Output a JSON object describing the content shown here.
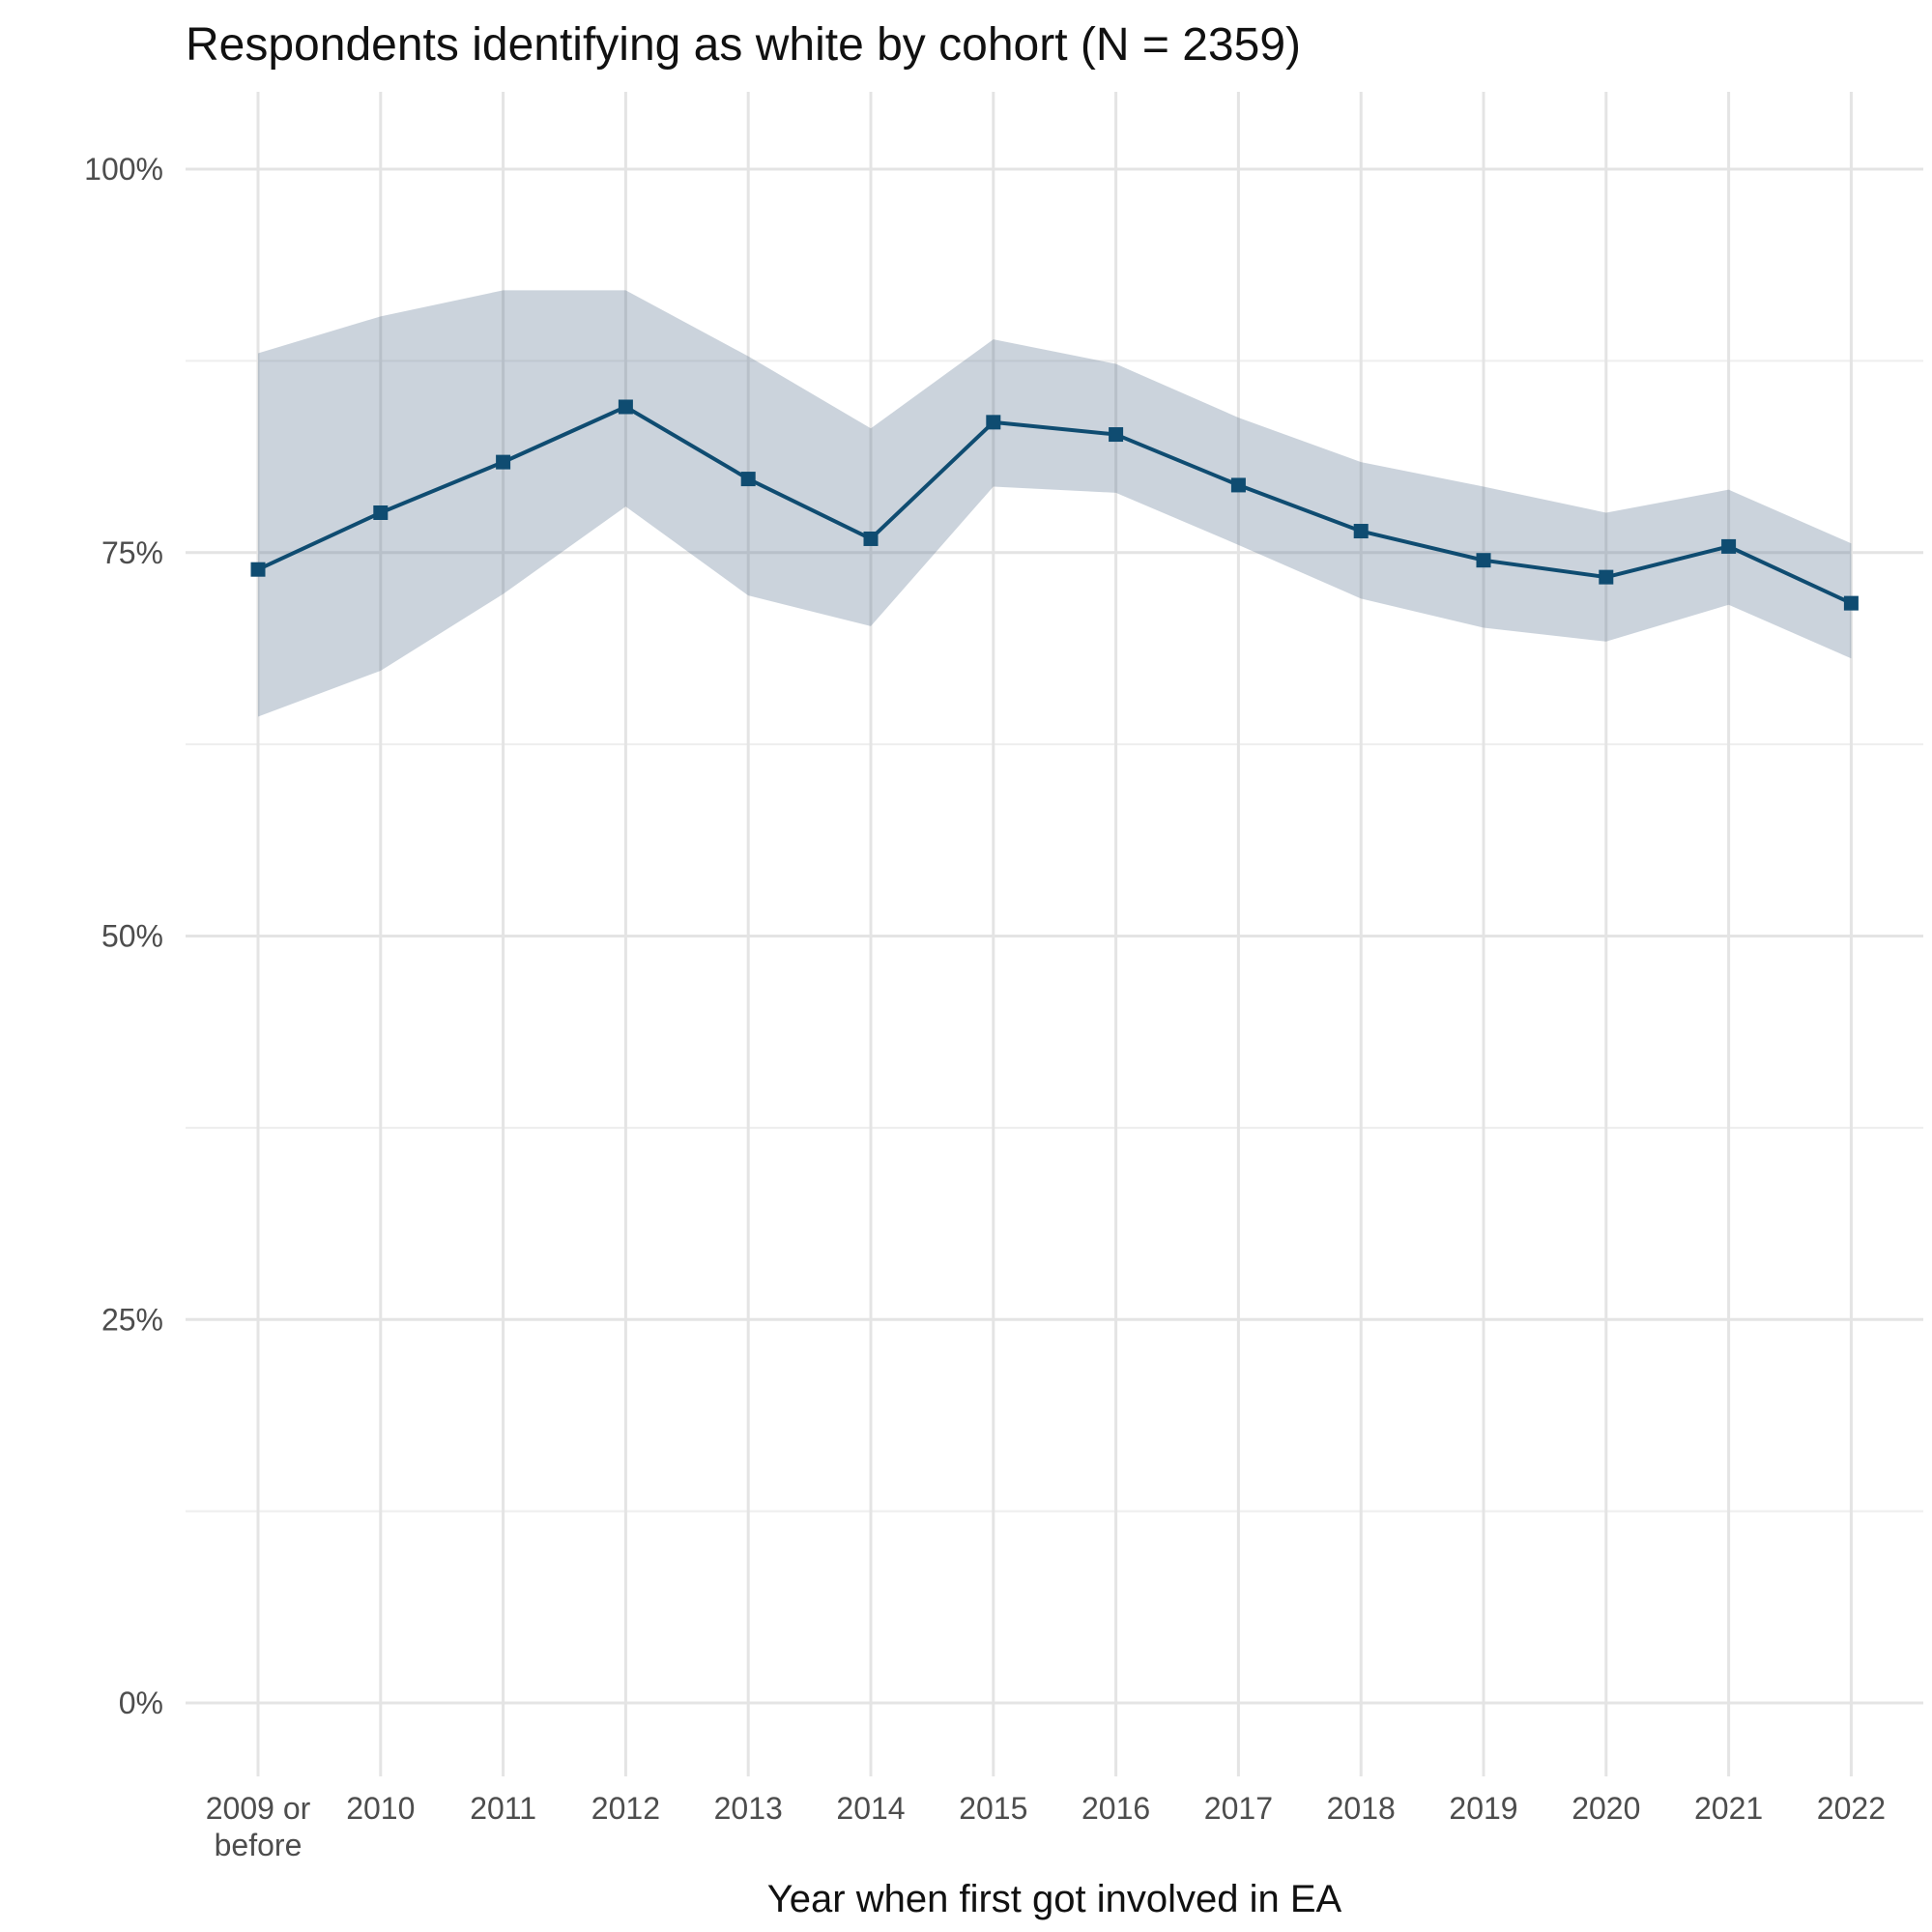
{
  "chart_data": {
    "type": "line",
    "title": "Respondents identifying as white by cohort (N = 2359)",
    "xlabel": "Year when first got involved in EA",
    "ylabel": "",
    "categories": [
      "2009 or\nbefore",
      "2010",
      "2011",
      "2012",
      "2013",
      "2014",
      "2015",
      "2016",
      "2017",
      "2018",
      "2019",
      "2020",
      "2021",
      "2022"
    ],
    "values": [
      73.9,
      77.6,
      80.9,
      84.5,
      79.8,
      75.9,
      83.5,
      82.7,
      79.4,
      76.4,
      74.5,
      73.4,
      75.4,
      71.7
    ],
    "ci_upper": [
      88.0,
      90.4,
      92.1,
      92.1,
      87.8,
      83.1,
      88.9,
      87.3,
      83.8,
      80.9,
      79.3,
      77.6,
      79.1,
      75.6
    ],
    "ci_lower": [
      64.3,
      67.3,
      72.3,
      78.0,
      72.2,
      70.2,
      79.3,
      78.9,
      75.5,
      72.0,
      70.1,
      69.2,
      71.6,
      68.1
    ],
    "ylim": [
      0,
      100
    ],
    "yticks": [
      0,
      25,
      50,
      75,
      100
    ],
    "ytick_labels": [
      "0%",
      "25%",
      "50%",
      "75%",
      "100%"
    ],
    "grid": true,
    "legend": "none",
    "colors": {
      "line": "#0f4c71",
      "ribbon": "#536e8a",
      "grid": "#e4e4e4"
    }
  }
}
